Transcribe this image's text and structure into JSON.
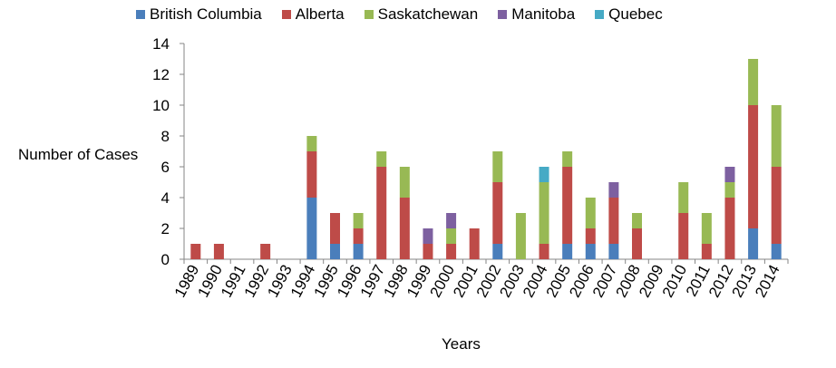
{
  "chart_data": {
    "type": "bar",
    "stacked": true,
    "title": "",
    "xlabel": "Years",
    "ylabel": "Number of Cases",
    "ylim": [
      0,
      14
    ],
    "yticks": [
      0,
      2,
      4,
      6,
      8,
      10,
      12,
      14
    ],
    "grid": false,
    "legend_position": "top",
    "categories": [
      "1989",
      "1990",
      "1991",
      "1992",
      "1993",
      "1994",
      "1995",
      "1996",
      "1997",
      "1998",
      "1999",
      "2000",
      "2001",
      "2002",
      "2003",
      "2004",
      "2005",
      "2006",
      "2007",
      "2008",
      "2009",
      "2010",
      "2011",
      "2012",
      "2013",
      "2014"
    ],
    "series": [
      {
        "name": "British Columbia",
        "color": "#4a7ebb",
        "values": [
          0,
          0,
          0,
          0,
          0,
          4,
          1,
          1,
          0,
          0,
          0,
          0,
          0,
          1,
          0,
          0,
          1,
          1,
          1,
          0,
          0,
          0,
          0,
          0,
          2,
          1
        ]
      },
      {
        "name": "Alberta",
        "color": "#be4b48",
        "values": [
          1,
          1,
          0,
          1,
          0,
          3,
          2,
          1,
          6,
          4,
          1,
          1,
          2,
          4,
          0,
          1,
          5,
          1,
          3,
          2,
          0,
          3,
          1,
          4,
          8,
          5
        ]
      },
      {
        "name": "Saskatchewan",
        "color": "#98b954",
        "values": [
          0,
          0,
          0,
          0,
          0,
          1,
          0,
          1,
          1,
          2,
          0,
          1,
          0,
          2,
          3,
          4,
          1,
          2,
          0,
          1,
          0,
          2,
          2,
          1,
          3,
          4
        ]
      },
      {
        "name": "Manitoba",
        "color": "#7d60a0",
        "values": [
          0,
          0,
          0,
          0,
          0,
          0,
          0,
          0,
          0,
          0,
          1,
          1,
          0,
          0,
          0,
          0,
          0,
          0,
          1,
          0,
          0,
          0,
          0,
          1,
          0,
          0
        ]
      },
      {
        "name": "Quebec",
        "color": "#46aac5",
        "values": [
          0,
          0,
          0,
          0,
          0,
          0,
          0,
          0,
          0,
          0,
          0,
          0,
          0,
          0,
          0,
          1,
          0,
          0,
          0,
          0,
          0,
          0,
          0,
          0,
          0,
          0
        ]
      }
    ]
  }
}
